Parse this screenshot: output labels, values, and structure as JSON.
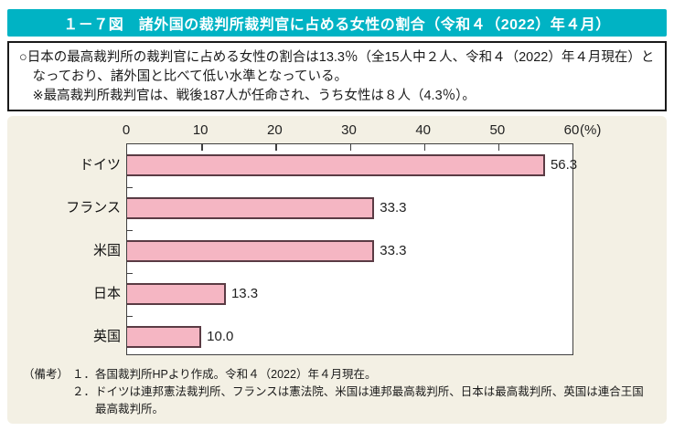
{
  "title": "１－７図　諸外国の裁判所裁判官に占める女性の割合（令和４（2022）年４月）",
  "summary": {
    "line1": "○日本の最高裁判所の裁判官に占める女性の割合は13.3％（全15人中２人、令和４（2022）年４月現在）となっており、諸外国と比べて低い水準となっている。",
    "line2": "※最高裁判所裁判官は、戦後187人が任命され、うち女性は８人（4.3％）。"
  },
  "chart_data": {
    "type": "bar",
    "orientation": "horizontal",
    "title": "諸外国の裁判所裁判官に占める女性の割合（令和４（2022）年４月）",
    "categories": [
      "ドイツ",
      "フランス",
      "米国",
      "日本",
      "英国"
    ],
    "values": [
      56.3,
      33.3,
      33.3,
      13.3,
      10.0
    ],
    "xlim": [
      0,
      60
    ],
    "xticks": [
      0,
      10,
      20,
      30,
      40,
      50,
      60
    ],
    "unit_label": "(%)",
    "grid": false,
    "legend": "none",
    "bar_color": "#f5b6c3",
    "bar_border_color": "#5a3b44"
  },
  "notes": {
    "label": "（備考）",
    "items": [
      {
        "num": "１．",
        "text": "各国裁判所HPより作成。令和４（2022）年４月現在。"
      },
      {
        "num": "２．",
        "text": "ドイツは連邦憲法裁判所、フランスは憲法院、米国は連邦最高裁判所、日本は最高裁判所、英国は連合王国最高裁判所。"
      }
    ]
  },
  "colors": {
    "header_bg": "#00b3c4",
    "header_text": "#ffffff",
    "panel_bg": "#f3f0e4",
    "bar_fill": "#f5b6c3",
    "bar_border": "#5a3b44"
  }
}
